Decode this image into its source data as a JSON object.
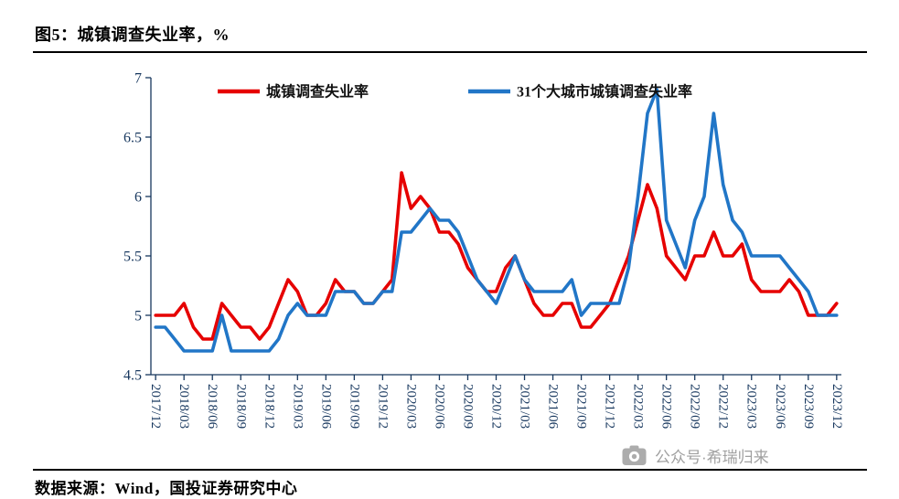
{
  "page": {
    "title": "图5：城镇调查失业率，%",
    "source": "数据来源：Wind，国投证券研究中心",
    "watermark": "公众号·希瑞归来"
  },
  "colors": {
    "axis_text": "#17375e",
    "axis_line": "#17375e",
    "series_red": "#e60000",
    "series_blue": "#2176c7",
    "watermark_gray": "#9b9b9b",
    "rule_black": "#000000"
  },
  "chart_data": {
    "type": "line",
    "title": "图5：城镇调查失业率，%",
    "xlabel": "",
    "ylabel": "",
    "ylim": [
      4.5,
      7
    ],
    "yticks": [
      4.5,
      5,
      5.5,
      6,
      6.5,
      7
    ],
    "grid": false,
    "legend_position": "top",
    "x": [
      "2017/12",
      "2018/01",
      "2018/02",
      "2018/03",
      "2018/04",
      "2018/05",
      "2018/06",
      "2018/07",
      "2018/08",
      "2018/09",
      "2018/10",
      "2018/11",
      "2018/12",
      "2019/01",
      "2019/02",
      "2019/03",
      "2019/04",
      "2019/05",
      "2019/06",
      "2019/07",
      "2019/08",
      "2019/09",
      "2019/10",
      "2019/11",
      "2019/12",
      "2020/01",
      "2020/02",
      "2020/03",
      "2020/04",
      "2020/05",
      "2020/06",
      "2020/07",
      "2020/08",
      "2020/09",
      "2020/10",
      "2020/11",
      "2020/12",
      "2021/01",
      "2021/02",
      "2021/03",
      "2021/04",
      "2021/05",
      "2021/06",
      "2021/07",
      "2021/08",
      "2021/09",
      "2021/10",
      "2021/11",
      "2021/12",
      "2022/01",
      "2022/02",
      "2022/03",
      "2022/04",
      "2022/05",
      "2022/06",
      "2022/07",
      "2022/08",
      "2022/09",
      "2022/10",
      "2022/11",
      "2022/12",
      "2023/01",
      "2023/02",
      "2023/03",
      "2023/04",
      "2023/05",
      "2023/06",
      "2023/07",
      "2023/08",
      "2023/09",
      "2023/10",
      "2023/11",
      "2023/12"
    ],
    "x_tick_labels": [
      "2017/12",
      "2018/03",
      "2018/06",
      "2018/09",
      "2018/12",
      "2019/03",
      "2019/06",
      "2019/09",
      "2019/12",
      "2020/03",
      "2020/06",
      "2020/09",
      "2020/12",
      "2021/03",
      "2021/06",
      "2021/09",
      "2021/12",
      "2022/03",
      "2022/06",
      "2022/09",
      "2022/12",
      "2023/03",
      "2023/06",
      "2023/09",
      "2023/12"
    ],
    "x_tick_interval": 3,
    "series": [
      {
        "key": "national",
        "name": "城镇调查失业率",
        "color": "#e60000",
        "values": [
          5.0,
          5.0,
          5.0,
          5.1,
          4.9,
          4.8,
          4.8,
          5.1,
          5.0,
          4.9,
          4.9,
          4.8,
          4.9,
          5.1,
          5.3,
          5.2,
          5.0,
          5.0,
          5.1,
          5.3,
          5.2,
          5.2,
          5.1,
          5.1,
          5.2,
          5.3,
          6.2,
          5.9,
          6.0,
          5.9,
          5.7,
          5.7,
          5.6,
          5.4,
          5.3,
          5.2,
          5.2,
          5.4,
          5.5,
          5.3,
          5.1,
          5.0,
          5.0,
          5.1,
          5.1,
          4.9,
          4.9,
          5.0,
          5.1,
          5.3,
          5.5,
          5.8,
          6.1,
          5.9,
          5.5,
          5.4,
          5.3,
          5.5,
          5.5,
          5.7,
          5.5,
          5.5,
          5.6,
          5.3,
          5.2,
          5.2,
          5.2,
          5.3,
          5.2,
          5.0,
          5.0,
          5.0,
          5.1
        ]
      },
      {
        "key": "big31cities",
        "name": "31个大城市城镇调查失业率",
        "color": "#2176c7",
        "values": [
          4.9,
          4.9,
          4.8,
          4.7,
          4.7,
          4.7,
          4.7,
          5.0,
          4.7,
          4.7,
          4.7,
          4.7,
          4.7,
          4.8,
          5.0,
          5.1,
          5.0,
          5.0,
          5.0,
          5.2,
          5.2,
          5.2,
          5.1,
          5.1,
          5.2,
          5.2,
          5.7,
          5.7,
          5.8,
          5.9,
          5.8,
          5.8,
          5.7,
          5.5,
          5.3,
          5.2,
          5.1,
          5.3,
          5.5,
          5.3,
          5.2,
          5.2,
          5.2,
          5.2,
          5.3,
          5.0,
          5.1,
          5.1,
          5.1,
          5.1,
          5.4,
          6.0,
          6.7,
          6.9,
          5.8,
          5.6,
          5.4,
          5.8,
          6.0,
          6.7,
          6.1,
          5.8,
          5.7,
          5.5,
          5.5,
          5.5,
          5.5,
          5.4,
          5.3,
          5.2,
          5.0,
          5.0,
          5.0
        ]
      }
    ]
  }
}
